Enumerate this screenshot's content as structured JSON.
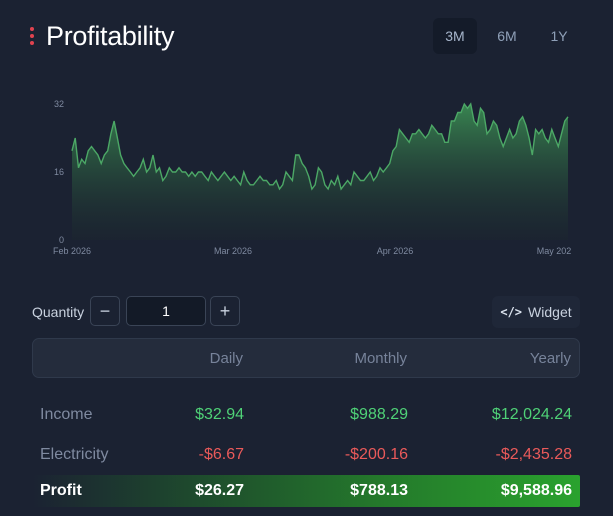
{
  "header": {
    "title": "Profitability"
  },
  "range_tabs": [
    {
      "label": "3M",
      "active": true
    },
    {
      "label": "6M",
      "active": false
    },
    {
      "label": "1Y",
      "active": false
    }
  ],
  "chart_data": {
    "type": "area",
    "y_ticks": [
      "32",
      "16",
      "0"
    ],
    "ylim": [
      0,
      32
    ],
    "x_ticks": [
      "Feb 2026",
      "Mar 2026",
      "Apr 2026",
      "May 202"
    ],
    "line_color": "#4ca866",
    "fill_color": "#2f7a45",
    "values": [
      21,
      24,
      17,
      19,
      18,
      21,
      22,
      21,
      20,
      18,
      20,
      21,
      25,
      28,
      24,
      20,
      18,
      17,
      16,
      15,
      16,
      17,
      19,
      16,
      17,
      20,
      16,
      17,
      14,
      15,
      17,
      16,
      16,
      17,
      16,
      16,
      15,
      16,
      15,
      16,
      16,
      15,
      14,
      16,
      15,
      14,
      15,
      16,
      15,
      14,
      15,
      14,
      13,
      16,
      14,
      13,
      13,
      14,
      15,
      14,
      14,
      13,
      13,
      14,
      12,
      13,
      16,
      15,
      14,
      20,
      20,
      18,
      17,
      15,
      12,
      13,
      17,
      16,
      13,
      12,
      14,
      13,
      15,
      12,
      13,
      14,
      13,
      16,
      15,
      14,
      14,
      15,
      16,
      14,
      15,
      17,
      16,
      17,
      18,
      21,
      22,
      26,
      25,
      24,
      23,
      25,
      25,
      26,
      25,
      24,
      25,
      27,
      26,
      25,
      25,
      23,
      23,
      28,
      28,
      30,
      30,
      32,
      31,
      32,
      28,
      27,
      31,
      30,
      25,
      26,
      28,
      27,
      24,
      22,
      24,
      26,
      24,
      25,
      28,
      29,
      27,
      24,
      20,
      26,
      25,
      26,
      24,
      23,
      26,
      24,
      22,
      25,
      28,
      29
    ]
  },
  "quantity": {
    "label": "Quantity",
    "minus": "−",
    "plus": "+",
    "value": "1"
  },
  "widget": {
    "icon": "</>",
    "label": "Widget"
  },
  "table": {
    "headers": [
      "Daily",
      "Monthly",
      "Yearly"
    ],
    "rows": [
      {
        "label": "Income",
        "daily": "$32.94",
        "monthly": "$988.29",
        "yearly": "$12,024.24"
      },
      {
        "label": "Electricity",
        "daily": "-$6.67",
        "monthly": "-$200.16",
        "yearly": "-$2,435.28"
      },
      {
        "label": "Profit",
        "daily": "$26.27",
        "monthly": "$788.13",
        "yearly": "$9,588.96"
      }
    ]
  }
}
